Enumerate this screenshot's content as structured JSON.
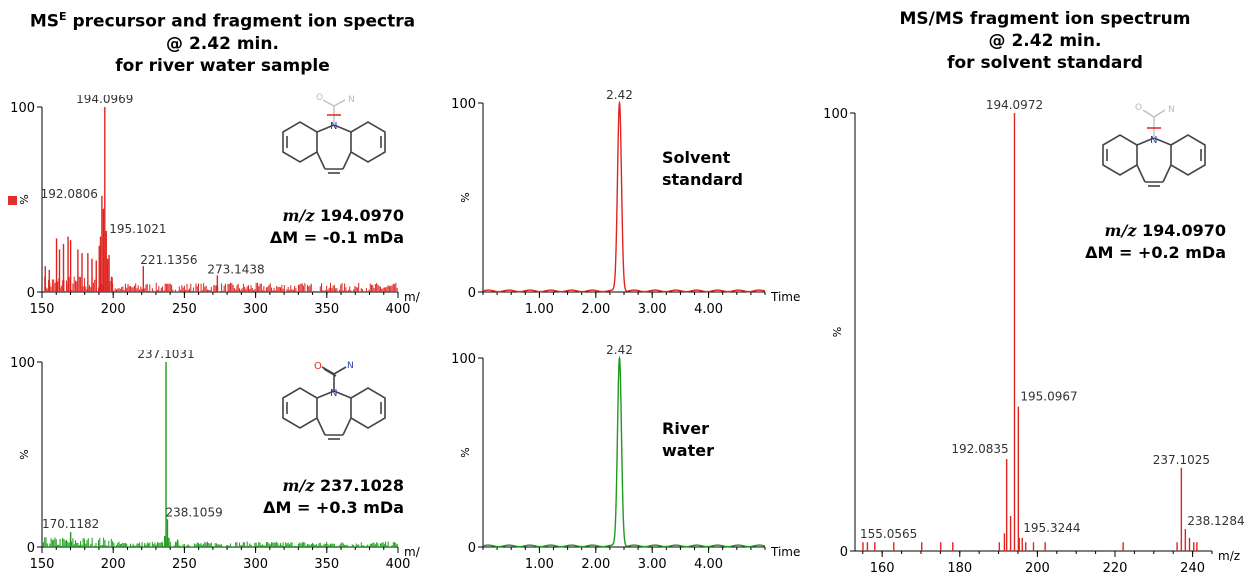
{
  "titles": {
    "left": [
      "MS",
      "E",
      " precursor and fragment ion spectra",
      "@ 2.42 min.",
      "for river water sample"
    ],
    "right": [
      "MS/MS fragment ion spectrum",
      "@ 2.42 min.",
      "for solvent standard"
    ]
  },
  "colors": {
    "red": "#e02420",
    "green": "#1f9a1f",
    "axis": "#000000"
  },
  "annotations": {
    "p1_mz": "m/z",
    "p1_mass": "194.0970",
    "p1_delta": "ΔM = -0.1 mDa",
    "p2_mz": "m/z",
    "p2_mass": "237.1028",
    "p2_delta": "ΔM = +0.3 mDa",
    "p3_label": "Solvent standard",
    "p3_line1": "Solvent",
    "p3_line2": "standard",
    "p4_line1": "River",
    "p4_line2": "water",
    "p5_mz": "m/z",
    "p5_mass": "194.0970",
    "p5_delta": "ΔM = +0.2 mDa"
  },
  "chart_data": [
    {
      "id": "mse-low-energy",
      "type": "bar",
      "title": "",
      "xlabel": "m/z",
      "ylabel": "%",
      "color": "#e02420",
      "xlim": [
        150,
        400
      ],
      "ylim": [
        0,
        100
      ],
      "xticks": [
        150,
        200,
        250,
        300,
        350,
        400
      ],
      "yticks": [
        0,
        100
      ],
      "peaks": [
        {
          "x": 194.0969,
          "y": 100,
          "label": "194.0969"
        },
        {
          "x": 192.0806,
          "y": 52,
          "label": "192.0806"
        },
        {
          "x": 195.1021,
          "y": 33,
          "label": "195.1021"
        },
        {
          "x": 221.1356,
          "y": 14,
          "label": "221.1356"
        },
        {
          "x": 273.1438,
          "y": 9,
          "label": "273.1438"
        },
        {
          "x": 193.1,
          "y": 45
        },
        {
          "x": 190.2,
          "y": 25
        },
        {
          "x": 191.1,
          "y": 30
        },
        {
          "x": 196.1,
          "y": 18
        },
        {
          "x": 197.1,
          "y": 20
        },
        {
          "x": 199.2,
          "y": 8
        },
        {
          "x": 168.3,
          "y": 30
        },
        {
          "x": 170.1,
          "y": 28
        },
        {
          "x": 160.2,
          "y": 29
        },
        {
          "x": 162.3,
          "y": 23
        },
        {
          "x": 165.1,
          "y": 26
        },
        {
          "x": 175.2,
          "y": 23
        },
        {
          "x": 178.1,
          "y": 21
        },
        {
          "x": 182.2,
          "y": 21
        },
        {
          "x": 185.1,
          "y": 18
        },
        {
          "x": 188.1,
          "y": 17
        },
        {
          "x": 152.3,
          "y": 14
        },
        {
          "x": 155.1,
          "y": 12
        }
      ],
      "noise_level": 5
    },
    {
      "id": "mse-high-energy",
      "type": "bar",
      "title": "",
      "xlabel": "m/z",
      "ylabel": "%",
      "color": "#1f9a1f",
      "xlim": [
        150,
        400
      ],
      "ylim": [
        0,
        100
      ],
      "xticks": [
        150,
        200,
        250,
        300,
        350,
        400
      ],
      "yticks": [
        0,
        100
      ],
      "peaks": [
        {
          "x": 237.1031,
          "y": 100,
          "label": "237.1031"
        },
        {
          "x": 238.1059,
          "y": 15,
          "label": "238.1059"
        },
        {
          "x": 170.1182,
          "y": 8,
          "label": "170.1182"
        },
        {
          "x": 236.2,
          "y": 6
        },
        {
          "x": 239.1,
          "y": 5
        },
        {
          "x": 245.2,
          "y": 4
        }
      ],
      "noise_level": 3
    },
    {
      "id": "chromatogram-solvent",
      "type": "line",
      "title": "",
      "xlabel": "Time",
      "ylabel": "%",
      "color": "#e02420",
      "xlim": [
        0,
        5
      ],
      "ylim": [
        0,
        100
      ],
      "xticks": [
        1.0,
        2.0,
        3.0,
        4.0
      ],
      "xtick_labels": [
        "1.00",
        "2.00",
        "3.00",
        "4.00"
      ],
      "yticks": [
        0,
        100
      ],
      "peak_rt": 2.42,
      "peak_label": "2.42"
    },
    {
      "id": "chromatogram-river",
      "type": "line",
      "title": "",
      "xlabel": "Time",
      "ylabel": "%",
      "color": "#1f9a1f",
      "xlim": [
        0,
        5
      ],
      "ylim": [
        0,
        100
      ],
      "xticks": [
        1.0,
        2.0,
        3.0,
        4.0
      ],
      "xtick_labels": [
        "1.00",
        "2.00",
        "3.00",
        "4.00"
      ],
      "yticks": [
        0,
        100
      ],
      "peak_rt": 2.42,
      "peak_label": "2.42"
    },
    {
      "id": "msms-solvent",
      "type": "bar",
      "title": "",
      "xlabel": "m/z",
      "ylabel": "%",
      "color": "#e02420",
      "xlim": [
        153,
        245
      ],
      "ylim": [
        0,
        100
      ],
      "xticks": [
        160,
        180,
        200,
        220,
        240
      ],
      "yticks": [
        0,
        100
      ],
      "peaks": [
        {
          "x": 194.0972,
          "y": 100,
          "label": "194.0972"
        },
        {
          "x": 195.0967,
          "y": 33,
          "label": "195.0967"
        },
        {
          "x": 192.0835,
          "y": 21,
          "label": "192.0835"
        },
        {
          "x": 237.1025,
          "y": 19,
          "label": "237.1025"
        },
        {
          "x": 238.1284,
          "y": 5,
          "label": "238.1284"
        },
        {
          "x": 155.0565,
          "y": 2,
          "label": "155.0565"
        },
        {
          "x": 195.3244,
          "y": 3,
          "label": "195.3244"
        },
        {
          "x": 193.1,
          "y": 8
        },
        {
          "x": 191.5,
          "y": 4
        },
        {
          "x": 196.1,
          "y": 3
        },
        {
          "x": 197.0,
          "y": 2
        },
        {
          "x": 190.2,
          "y": 2
        },
        {
          "x": 239.2,
          "y": 3
        },
        {
          "x": 240.3,
          "y": 2
        },
        {
          "x": 241.1,
          "y": 2
        },
        {
          "x": 156.2,
          "y": 2
        },
        {
          "x": 158.1,
          "y": 2
        },
        {
          "x": 163.0,
          "y": 2
        },
        {
          "x": 170.2,
          "y": 2
        },
        {
          "x": 175.1,
          "y": 2
        },
        {
          "x": 178.2,
          "y": 2
        },
        {
          "x": 199.0,
          "y": 2
        },
        {
          "x": 202.0,
          "y": 2
        },
        {
          "x": 222.1,
          "y": 2
        },
        {
          "x": 236.0,
          "y": 2
        }
      ],
      "noise_level": 0
    }
  ]
}
